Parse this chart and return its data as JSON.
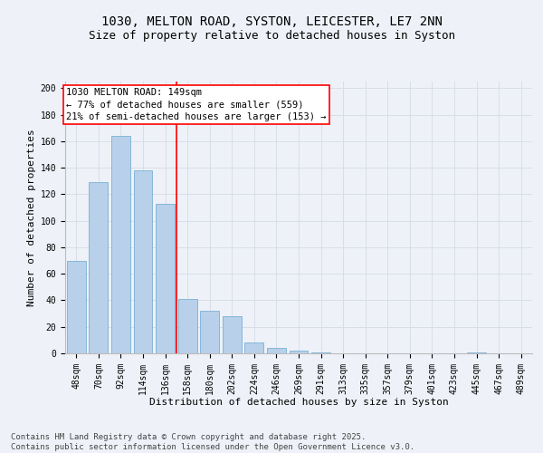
{
  "title_line1": "1030, MELTON ROAD, SYSTON, LEICESTER, LE7 2NN",
  "title_line2": "Size of property relative to detached houses in Syston",
  "xlabel": "Distribution of detached houses by size in Syston",
  "ylabel": "Number of detached properties",
  "categories": [
    "48sqm",
    "70sqm",
    "92sqm",
    "114sqm",
    "136sqm",
    "158sqm",
    "180sqm",
    "202sqm",
    "224sqm",
    "246sqm",
    "269sqm",
    "291sqm",
    "313sqm",
    "335sqm",
    "357sqm",
    "379sqm",
    "401sqm",
    "423sqm",
    "445sqm",
    "467sqm",
    "489sqm"
  ],
  "values": [
    70,
    129,
    164,
    138,
    113,
    41,
    32,
    28,
    8,
    4,
    2,
    1,
    0,
    0,
    0,
    0,
    0,
    0,
    1,
    0,
    0
  ],
  "bar_color": "#b8d0ea",
  "bar_edge_color": "#7aafd4",
  "background_color": "#eef2f8",
  "grid_color": "#d8dee8",
  "annotation_text_line1": "1030 MELTON ROAD: 149sqm",
  "annotation_text_line2": "← 77% of detached houses are smaller (559)",
  "annotation_text_line3": "21% of semi-detached houses are larger (153) →",
  "redline_x": 4.5,
  "ylim": [
    0,
    205
  ],
  "yticks": [
    0,
    20,
    40,
    60,
    80,
    100,
    120,
    140,
    160,
    180,
    200
  ],
  "footnote": "Contains HM Land Registry data © Crown copyright and database right 2025.\nContains public sector information licensed under the Open Government Licence v3.0.",
  "title_fontsize": 10,
  "subtitle_fontsize": 9,
  "label_fontsize": 8,
  "tick_fontsize": 7,
  "annot_fontsize": 7.5,
  "footnote_fontsize": 6.5
}
